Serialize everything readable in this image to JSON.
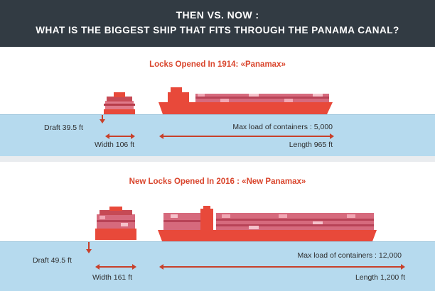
{
  "header": {
    "title_line1": "THEN VS. NOW :",
    "title_line2": "WHAT IS THE BIGGEST SHIP THAT FITS THROUGH THE PANAMA CANAL?"
  },
  "panamax": {
    "title": "Locks Opened In 1914: «Panamax»",
    "draft": "Draft 39.5 ft",
    "width": "Width 106 ft",
    "max_load": "Max load of containers : 5,000",
    "length": "Length 965 ft"
  },
  "new_panamax": {
    "title": "New Locks Opened In 2016 : «New Panamax»",
    "draft": "Draft 49.5 ft",
    "width": "Width 161 ft",
    "max_load": "Max load of containers : 12,000",
    "length": "Length 1,200 ft"
  },
  "colors": {
    "header_bg": "#323b43",
    "accent": "#d9452c",
    "hull": "#e8493a",
    "water": "#a6d1ea"
  }
}
